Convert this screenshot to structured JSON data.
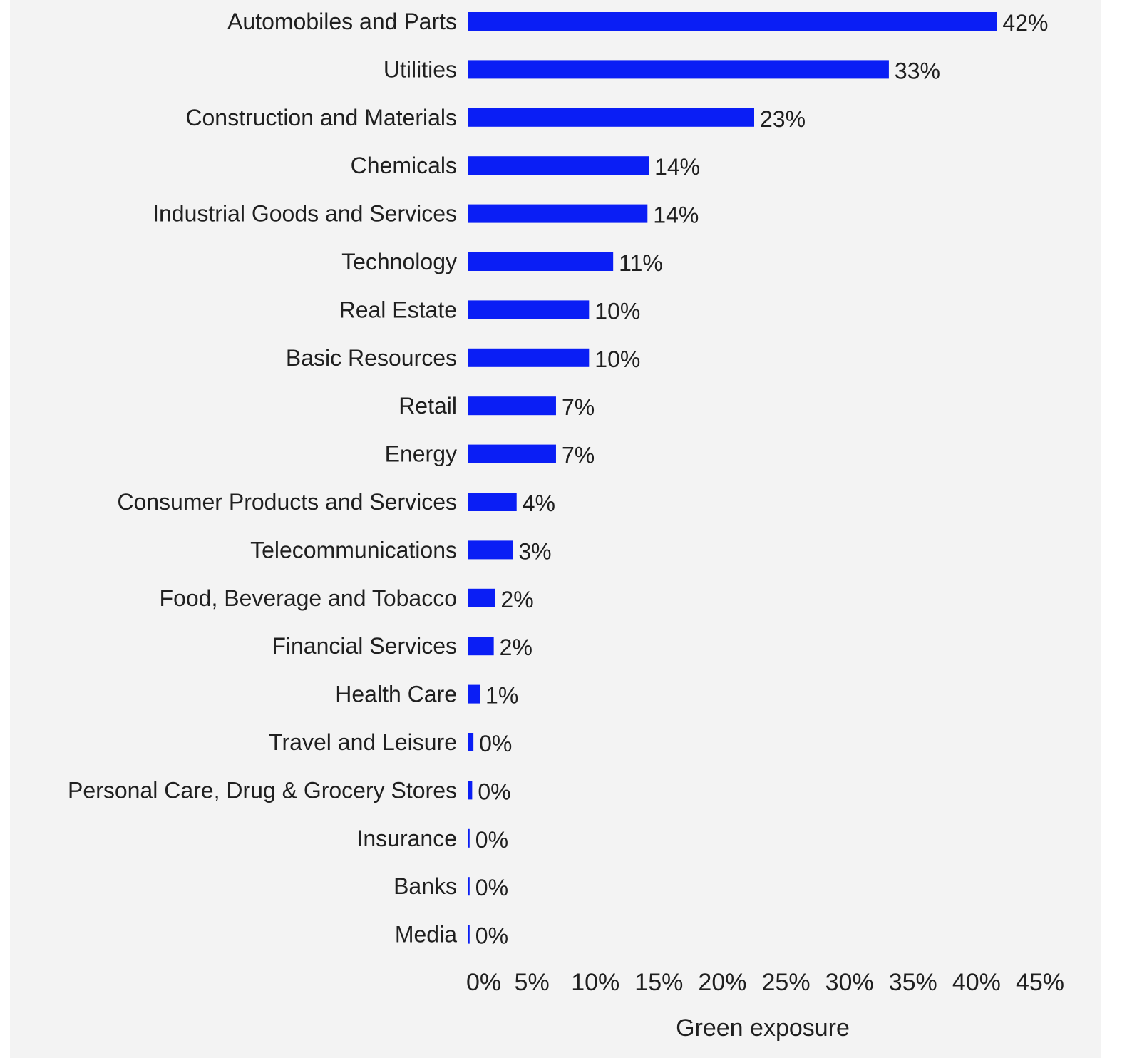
{
  "chart_data": {
    "type": "bar",
    "orientation": "horizontal",
    "categories": [
      "Automobiles and Parts",
      "Utilities",
      "Construction and Materials",
      "Chemicals",
      "Industrial Goods and Services",
      "Technology",
      "Real Estate",
      "Basic Resources",
      "Retail",
      "Energy",
      "Consumer Products and Services",
      "Telecommunications",
      "Food, Beverage and Tobacco",
      "Financial Services",
      "Health Care",
      "Travel and Leisure",
      "Personal Care, Drug & Grocery Stores",
      "Insurance",
      "Banks",
      "Media"
    ],
    "values": [
      41.6,
      33.1,
      22.5,
      14.2,
      14.1,
      11.4,
      9.5,
      9.5,
      6.9,
      6.9,
      3.8,
      3.5,
      2.1,
      2.0,
      0.9,
      0.4,
      0.3,
      0.1,
      0.1,
      0.1
    ],
    "value_labels": [
      "42%",
      "33%",
      "23%",
      "14%",
      "14%",
      "11%",
      "10%",
      "10%",
      "7%",
      "7%",
      "4%",
      "3%",
      "2%",
      "2%",
      "1%",
      "0%",
      "0%",
      "0%",
      "0%",
      "0%"
    ],
    "xlim": [
      0,
      45
    ],
    "xticks": [
      0,
      5,
      10,
      15,
      20,
      25,
      30,
      35,
      40,
      45
    ],
    "xtick_labels": [
      "0%",
      "5%",
      "10%",
      "15%",
      "20%",
      "25%",
      "30%",
      "35%",
      "40%",
      "45%"
    ],
    "xlabel": "Green exposure",
    "ylabel": "",
    "title": "",
    "grid": false,
    "legend": "none",
    "bar_color": "#0a1ef5",
    "background_color": "#f3f3f3"
  }
}
